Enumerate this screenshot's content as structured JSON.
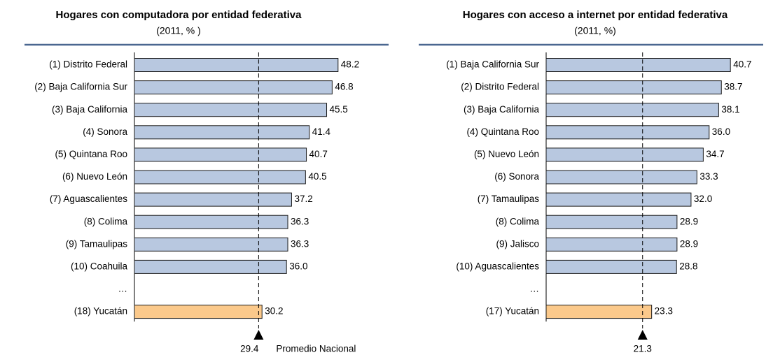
{
  "chart_data": [
    {
      "type": "bar",
      "orientation": "horizontal",
      "title": "Hogares con computadora por entidad federativa",
      "subtitle": "(2011, % )",
      "categories": [
        "(1) Distrito Federal",
        "(2) Baja California Sur",
        "(3) Baja California",
        "(4) Sonora",
        "(5) Quintana Roo",
        "(6) Nuevo León",
        "(7) Aguascalientes",
        "(8) Colima",
        "(9) Tamaulipas",
        "(10) Coahuila",
        "…",
        "(18) Yucatán"
      ],
      "values": [
        48.2,
        46.8,
        45.5,
        41.4,
        40.7,
        40.5,
        37.2,
        36.3,
        36.3,
        36.0,
        null,
        30.2
      ],
      "value_labels": [
        "48.2",
        "46.8",
        "45.5",
        "41.4",
        "40.7",
        "40.5",
        "37.2",
        "36.3",
        "36.3",
        "36.0",
        null,
        "30.2"
      ],
      "colors": [
        "#b8c8e0",
        "#b8c8e0",
        "#b8c8e0",
        "#b8c8e0",
        "#b8c8e0",
        "#b8c8e0",
        "#b8c8e0",
        "#b8c8e0",
        "#b8c8e0",
        "#b8c8e0",
        null,
        "#fbc98b"
      ],
      "average": 29.4,
      "average_label": "Promedio Nacional",
      "xlim": [
        0,
        60
      ]
    },
    {
      "type": "bar",
      "orientation": "horizontal",
      "title": "Hogares con acceso a internet por entidad federativa",
      "subtitle": "(2011, %)",
      "categories": [
        "(1) Baja California Sur",
        "(2) Distrito Federal",
        "(3) Baja California",
        "(4) Quintana Roo",
        "(5) Nuevo León",
        "(6) Sonora",
        "(7) Tamaulipas",
        "(8) Colima",
        "(9) Jalisco",
        "(10) Aguascalientes",
        "…",
        "(17) Yucatán"
      ],
      "values": [
        40.7,
        38.7,
        38.1,
        36.0,
        34.7,
        33.3,
        32.0,
        28.9,
        28.9,
        28.8,
        null,
        23.3
      ],
      "value_labels": [
        "40.7",
        "38.7",
        "38.1",
        "36.0",
        "34.7",
        "33.3",
        "32.0",
        "28.9",
        "28.9",
        "28.8",
        null,
        "23.3"
      ],
      "colors": [
        "#b8c8e0",
        "#b8c8e0",
        "#b8c8e0",
        "#b8c8e0",
        "#b8c8e0",
        "#b8c8e0",
        "#b8c8e0",
        "#b8c8e0",
        "#b8c8e0",
        "#b8c8e0",
        null,
        "#fbc98b"
      ],
      "average": 21.3,
      "xlim": [
        0,
        60
      ]
    }
  ]
}
